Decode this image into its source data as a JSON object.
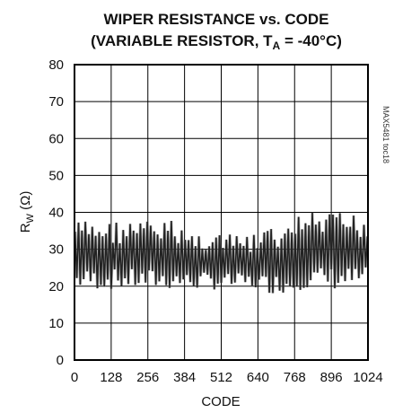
{
  "chart_data": {
    "type": "line",
    "title_line1": "WIPER RESISTANCE vs. CODE",
    "title_line2_pre": "(VARIABLE RESISTOR, T",
    "title_line2_sub": "A",
    "title_line2_post": " = -40°C)",
    "xlabel": "CODE",
    "ylabel_main": "R",
    "ylabel_sub": "W",
    "ylabel_unit": " (Ω)",
    "watermark": "MAX5481 toc18",
    "xlim": [
      0,
      1024
    ],
    "ylim": [
      0,
      80
    ],
    "x_ticks": [
      0,
      128,
      256,
      384,
      512,
      640,
      768,
      896,
      1024
    ],
    "y_ticks": [
      0,
      10,
      20,
      30,
      40,
      50,
      60,
      70,
      80
    ],
    "grid": true,
    "series": [
      {
        "segments": [
          {
            "x": [
              0,
              256
            ],
            "low": 19,
            "high": 38
          },
          {
            "x": [
              256,
              384
            ],
            "low": 19,
            "high": 38
          },
          {
            "x": [
              384,
              512
            ],
            "low": 19,
            "high": 35
          },
          {
            "x": [
              512,
              640
            ],
            "low": 19,
            "high": 34
          },
          {
            "x": [
              640,
              768
            ],
            "low": 18,
            "high": 36
          },
          {
            "x": [
              768,
              896
            ],
            "low": 19,
            "high": 40
          },
          {
            "x": [
              896,
              1024
            ],
            "low": 19,
            "high": 40
          }
        ],
        "oscillation_period_codes": 12
      }
    ],
    "colors": {
      "trace": "#222222",
      "trace_light": "#777777",
      "grid": "#000000"
    }
  }
}
